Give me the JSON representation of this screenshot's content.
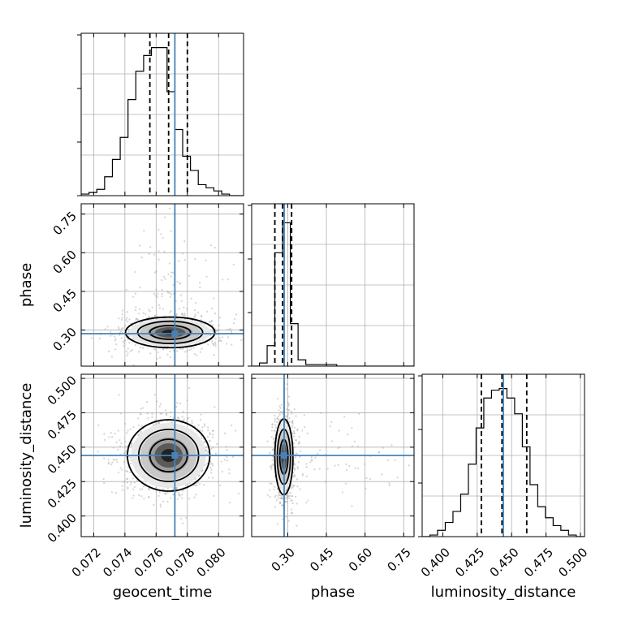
{
  "chart_data": {
    "type": "corner",
    "parameters": [
      "geocent_time",
      "phase",
      "luminosity_distance"
    ],
    "axis_labels": {
      "x": [
        "geocent_time",
        "phase",
        "luminosity_distance"
      ],
      "y": [
        "",
        "phase",
        "luminosity_distance"
      ]
    },
    "ranges": {
      "geocent_time": [
        0.0712,
        0.0816
      ],
      "phase": [
        0.16,
        0.79
      ],
      "luminosity_distance": [
        0.385,
        0.503
      ]
    },
    "ticks": {
      "geocent_time": {
        "values": [
          0.072,
          0.074,
          0.076,
          0.078,
          0.08
        ],
        "labels": [
          "0.072",
          "0.074",
          "0.076",
          "0.078",
          "0.080"
        ]
      },
      "phase": {
        "values": [
          0.3,
          0.45,
          0.6,
          0.75
        ],
        "labels": [
          "0.30",
          "0.45",
          "0.60",
          "0.75"
        ]
      },
      "luminosity_distance": {
        "values": [
          0.4,
          0.425,
          0.45,
          0.475,
          0.5
        ],
        "labels": [
          "0.400",
          "0.425",
          "0.450",
          "0.475",
          "0.500"
        ]
      }
    },
    "truths": {
      "geocent_time": 0.0772,
      "phase": 0.286,
      "luminosity_distance": 0.444
    },
    "quantiles": {
      "geocent_time": [
        0.0756,
        0.0768,
        0.078
      ],
      "phase": [
        0.25,
        0.28,
        0.315
      ],
      "luminosity_distance": [
        0.428,
        0.443,
        0.461
      ]
    },
    "histograms": {
      "geocent_time": {
        "edges": [
          0.0712,
          0.0717,
          0.0722,
          0.0727,
          0.0732,
          0.0737,
          0.0742,
          0.0747,
          0.0752,
          0.0757,
          0.0762,
          0.0767,
          0.0772,
          0.0777,
          0.0782,
          0.0787,
          0.0792,
          0.0797,
          0.0802,
          0.0807,
          0.0812,
          0.0816
        ],
        "counts": [
          0.01,
          0.02,
          0.04,
          0.12,
          0.23,
          0.37,
          0.61,
          0.79,
          0.89,
          0.94,
          0.94,
          0.66,
          0.42,
          0.25,
          0.16,
          0.07,
          0.05,
          0.03,
          0.01,
          0.0,
          0.0
        ]
      },
      "phase": {
        "edges": [
          0.16,
          0.19,
          0.22,
          0.25,
          0.28,
          0.31,
          0.34,
          0.37,
          0.4,
          0.43,
          0.46,
          0.49,
          0.52,
          0.55,
          0.58,
          0.61,
          0.64,
          0.67,
          0.7,
          0.73,
          0.76,
          0.79
        ],
        "counts": [
          0.0,
          0.02,
          0.13,
          0.72,
          0.91,
          0.27,
          0.04,
          0.01,
          0.01,
          0.01,
          0.01,
          0.0,
          0.0,
          0.0,
          0.0,
          0.0,
          0.0,
          0.0,
          0.0,
          0.0,
          0.0
        ]
      },
      "luminosity_distance": {
        "edges": [
          0.385,
          0.3906,
          0.3962,
          0.4018,
          0.4074,
          0.413,
          0.4186,
          0.4242,
          0.4298,
          0.4354,
          0.441,
          0.4466,
          0.4522,
          0.4578,
          0.4634,
          0.469,
          0.4746,
          0.4802,
          0.4858,
          0.4914,
          0.497,
          0.503
        ],
        "counts": [
          0.0,
          0.01,
          0.04,
          0.09,
          0.16,
          0.27,
          0.46,
          0.69,
          0.88,
          0.93,
          0.94,
          0.88,
          0.78,
          0.57,
          0.33,
          0.19,
          0.12,
          0.07,
          0.04,
          0.01,
          0.0
        ]
      }
    },
    "density_contours": [
      {
        "x": "geocent_time",
        "y": "phase",
        "center": [
          0.0769,
          0.291
        ],
        "sigma": [
          0.0013,
          0.027
        ],
        "levels": [
          1.0,
          1.6,
          2.2
        ]
      },
      {
        "x": "geocent_time",
        "y": "luminosity_distance",
        "center": [
          0.0768,
          0.444
        ],
        "sigma": [
          0.0012,
          0.0118
        ],
        "levels": [
          1.0,
          1.6,
          2.2
        ]
      },
      {
        "x": "phase",
        "y": "luminosity_distance",
        "center": [
          0.285,
          0.443
        ],
        "sigma": [
          0.016,
          0.0125
        ],
        "levels": [
          1.0,
          1.6,
          2.2
        ]
      }
    ],
    "grid": true,
    "colors": {
      "truth": "#4682b4",
      "hist": "#000000",
      "quantile": "#000000",
      "grid": "#b0b0b0",
      "points": "#aaaaaa"
    }
  }
}
